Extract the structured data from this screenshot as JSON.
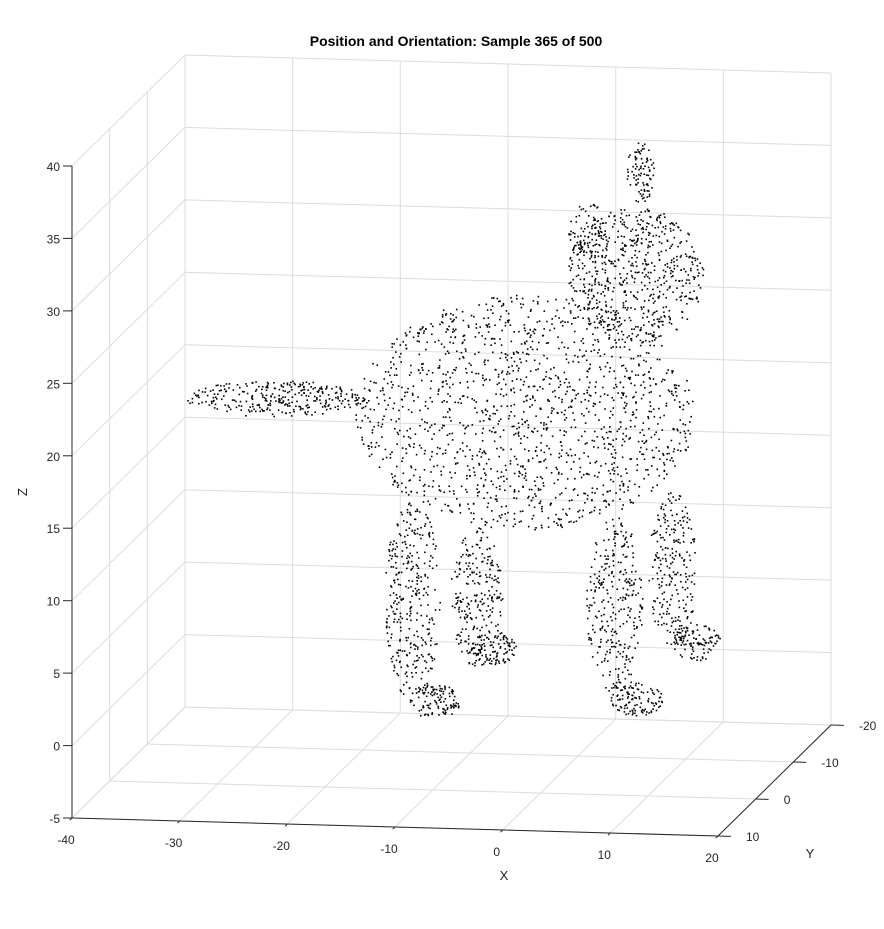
{
  "chart_data": {
    "type": "scatter",
    "subtype": "3d-point-cloud",
    "title": "Position and Orientation: Sample 365 of 500",
    "xlabel": "X",
    "ylabel": "Y",
    "zlabel": "Z",
    "xlim": [
      -40,
      20
    ],
    "ylim": [
      -20,
      10
    ],
    "zlim": [
      -5,
      40
    ],
    "xticks": [
      "-40",
      "-30",
      "-20",
      "-10",
      "0",
      "10",
      "20"
    ],
    "yticks": [
      "-20",
      "-10",
      "0",
      "10"
    ],
    "zticks": [
      "-5",
      "0",
      "5",
      "10",
      "15",
      "20",
      "25",
      "30",
      "35",
      "40"
    ],
    "grid": true,
    "marker_color": "#000000",
    "grid_color": "#dcdcdc",
    "axis_color": "#262626",
    "depicted_object": "cat"
  }
}
